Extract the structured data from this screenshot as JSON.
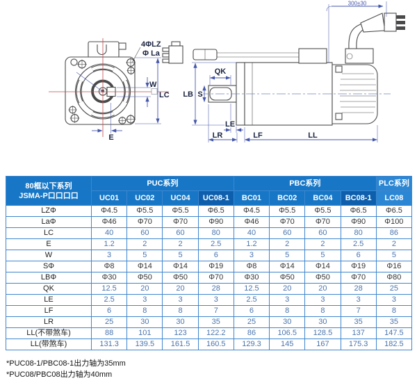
{
  "drawing": {
    "front_view": {
      "label_holes": "4ΦLZ",
      "label_pilot": "Φ La",
      "label_w": "W",
      "label_lc": "LC",
      "label_e": "E"
    },
    "side_view": {
      "label_cable_length": "300±30",
      "label_qk": "QK",
      "label_lb": "LB",
      "label_s": "S",
      "label_le": "LE",
      "label_lr": "LR",
      "label_lf": "LF",
      "label_ll": "LL"
    }
  },
  "table": {
    "corner_header": [
      "80框以下系列",
      "JSMA-P口口口口"
    ],
    "groups": [
      {
        "label": "PUC系列",
        "span": 4,
        "light": false
      },
      {
        "label": "PBC系列",
        "span": 4,
        "light": false
      },
      {
        "label": "PLC系列",
        "span": 1,
        "light": true
      }
    ],
    "columns": [
      "UC01",
      "UC02",
      "UC04",
      "UC08-1",
      "BC01",
      "BC02",
      "BC04",
      "BC08-1",
      "LC08"
    ],
    "highlight_column_indexes": [
      3,
      7
    ],
    "rows": [
      {
        "label": "LZΦ",
        "values": [
          "Φ4.5",
          "Φ5.5",
          "Φ5.5",
          "Φ6.5",
          "Φ4.5",
          "Φ5.5",
          "Φ5.5",
          "Φ6.5",
          "Φ6.5"
        ]
      },
      {
        "label": "LaΦ",
        "values": [
          "Φ46",
          "Φ70",
          "Φ70",
          "Φ90",
          "Φ46",
          "Φ70",
          "Φ70",
          "Φ90",
          "Φ100"
        ]
      },
      {
        "label": "LC",
        "values": [
          "40",
          "60",
          "60",
          "80",
          "40",
          "60",
          "60",
          "80",
          "86"
        ]
      },
      {
        "label": "E",
        "values": [
          "1.2",
          "2",
          "2",
          "2.5",
          "1.2",
          "2",
          "2",
          "2.5",
          "2"
        ]
      },
      {
        "label": "W",
        "values": [
          "3",
          "5",
          "5",
          "6",
          "3",
          "5",
          "5",
          "6",
          "5"
        ]
      },
      {
        "label": "SΦ",
        "values": [
          "Φ8",
          "Φ14",
          "Φ14",
          "Φ19",
          "Φ8",
          "Φ14",
          "Φ14",
          "Φ19",
          "Φ16"
        ]
      },
      {
        "label": "LBΦ",
        "values": [
          "Φ30",
          "Φ50",
          "Φ50",
          "Φ70",
          "Φ30",
          "Φ50",
          "Φ50",
          "Φ70",
          "Φ80"
        ]
      },
      {
        "label": "QK",
        "values": [
          "12.5",
          "20",
          "20",
          "28",
          "12.5",
          "20",
          "20",
          "28",
          "25"
        ]
      },
      {
        "label": "LE",
        "values": [
          "2.5",
          "3",
          "3",
          "3",
          "2.5",
          "3",
          "3",
          "3",
          "3"
        ]
      },
      {
        "label": "LF",
        "values": [
          "6",
          "8",
          "8",
          "7",
          "6",
          "8",
          "8",
          "7",
          "8"
        ]
      },
      {
        "label": "LR",
        "values": [
          "25",
          "30",
          "30",
          "35",
          "25",
          "30",
          "30",
          "35",
          "35"
        ]
      },
      {
        "label": "LL(不带煞车)",
        "values": [
          "88",
          "101",
          "123",
          "122.2",
          "86",
          "106.5",
          "128.5",
          "137",
          "147.5"
        ]
      },
      {
        "label": "LL(带煞车)",
        "values": [
          "131.3",
          "139.5",
          "161.5",
          "160.5",
          "129.3",
          "145",
          "167",
          "175.3",
          "182.5"
        ]
      }
    ]
  },
  "notes": [
    "*PUC08-1/PBC08-1出力轴为35mm",
    "*PUC08/PBC08出力轴为40mm"
  ],
  "colors": {
    "header_blue": "#1777c6",
    "header_highlight": "#0d5fad",
    "header_light": "#2b86d3",
    "grid_blue": "#3e86cd",
    "value_blue": "#4a74ad",
    "value_dark": "#333333",
    "dimension_blue": "#4456aa",
    "centerline_red": "#c24a4a",
    "drawing_outline": "#4a4a4a",
    "label_navy": "#1a2340"
  }
}
